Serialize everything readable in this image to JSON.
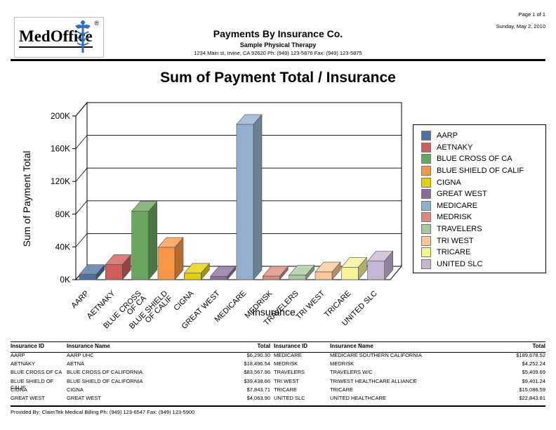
{
  "page": {
    "page_info": "Page 1 of 1",
    "date": "Sunday, May 2, 2010"
  },
  "header": {
    "logo_text": "MedOffice",
    "logo_reg": "®",
    "report_title": "Payments By Insurance Co.",
    "practice_name": "Sample Physical Therapy",
    "practice_address": "1234 Main st, Irvine, CA 92620 Ph: (949) 123-5876 Fax: (949) 123-5875"
  },
  "chart_data": {
    "type": "bar",
    "style": "3d",
    "title": "Sum of Payment Total / Insurance",
    "xlabel": "Insurance",
    "ylabel": "Sum of Payment Total",
    "ylim": [
      0,
      200000
    ],
    "ytick_step": 40000,
    "ytick_labels": [
      "0K",
      "40K",
      "80K",
      "120K",
      "160K",
      "200K"
    ],
    "grid": true,
    "legend_position": "right",
    "categories": [
      "AARP",
      "AETNAKY",
      "BLUE CROSS OF CA",
      "BLUE SHIELD OF CALIF",
      "CIGNA",
      "GREAT WEST",
      "MEDICARE",
      "MEDRISK",
      "TRAVELERS",
      "TRI WEST",
      "TRICARE",
      "UNITED SLC"
    ],
    "category_label_lines": [
      [
        "AARP"
      ],
      [
        "AETNAKY"
      ],
      [
        "BLUE CROSS",
        "OF CA"
      ],
      [
        "BLUE SHIELD",
        "OF CALIF"
      ],
      [
        "CIGNA"
      ],
      [
        "GREAT WEST"
      ],
      [
        "MEDICARE"
      ],
      [
        "MEDRISK"
      ],
      [
        "TRAVELERS"
      ],
      [
        "TRI WEST"
      ],
      [
        "TRICARE"
      ],
      [
        "UNITED SLC"
      ]
    ],
    "values": [
      6290.3,
      18496.54,
      83567.96,
      39438.66,
      7843.71,
      4063.9,
      189678.52,
      4252.24,
      5409.69,
      9401.24,
      15086.59,
      22843.81
    ],
    "colors": [
      "#4d71a3",
      "#cf5e5a",
      "#69a55e",
      "#f79646",
      "#e6ce00",
      "#8a6d9b",
      "#93afce",
      "#db8a7e",
      "#a8c99c",
      "#fbc698",
      "#f7f294",
      "#c7b6d3"
    ]
  },
  "table": {
    "headers": [
      "Insurance ID",
      "Insurance Name",
      "Total"
    ],
    "left_rows": [
      {
        "id": "AARP",
        "name": "AARP UHC",
        "total": "$6,290.30"
      },
      {
        "id": "AETNAKY",
        "name": "AETNA",
        "total": "$18,496.54"
      },
      {
        "id": "BLUE CROSS OF CA",
        "name": "BLUE CROSS OF CALIFORNIA",
        "total": "$83,567.96"
      },
      {
        "id": "BLUE SHIELD OF CALIF",
        "name": "BLUE SHIELD OF CALIFORNIA",
        "total": "$39,438.66"
      },
      {
        "id": "CIGNA",
        "name": "CIGNA",
        "total": "$7,843.71"
      },
      {
        "id": "GREAT WEST",
        "name": "GREAT WEST",
        "total": "$4,063.90"
      }
    ],
    "right_rows": [
      {
        "id": "MEDICARE",
        "name": "MEDICARE SOUTHERN CALIFORNIA",
        "total": "$189,678.52"
      },
      {
        "id": "MEDRISK",
        "name": "MEDRISK",
        "total": "$4,252.24"
      },
      {
        "id": "TRAVELERS",
        "name": "TRAVELERS W/C",
        "total": "$5,409.69"
      },
      {
        "id": "TRI WEST",
        "name": "TRIWEST HEALTHCARE ALLIANCE",
        "total": "$9,401.24"
      },
      {
        "id": "TRICARE",
        "name": "TRICARE",
        "total": "$15,086.59"
      },
      {
        "id": "UNITED SLC",
        "name": "UNITED HEALTHCARE",
        "total": "$22,843.81"
      }
    ]
  },
  "footer": {
    "provided_by": "Provided By: ClaimTek Medical Billing Ph: (949) 123-6547 Fax: (949) 123-5900"
  }
}
